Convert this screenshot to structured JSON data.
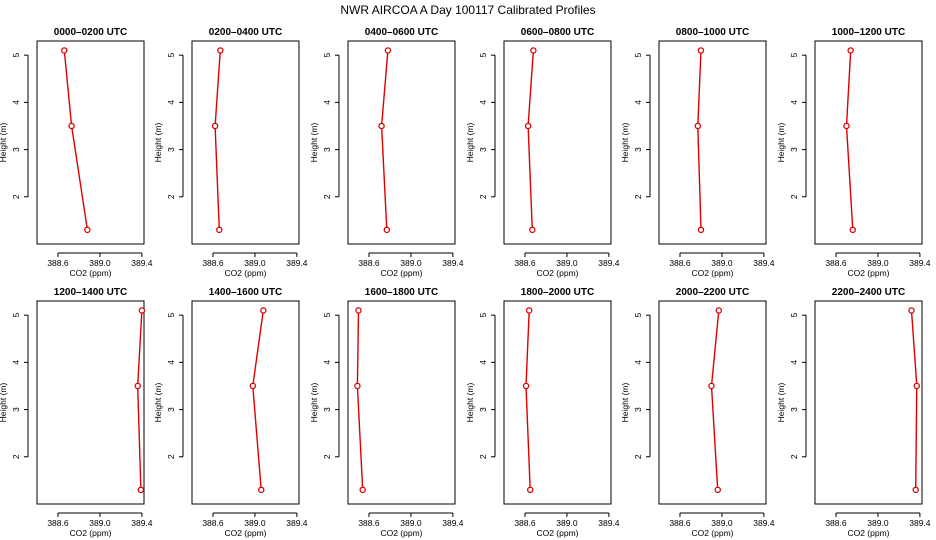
{
  "figure": {
    "title": "NWR AIRCOA A  Day 100117  Calibrated Profiles"
  },
  "chart_data": [
    {
      "type": "line",
      "title": "0000–0200 UTC",
      "xlabel": "CO2 (ppm)",
      "ylabel": "Height (m)",
      "xlim": [
        388.4,
        389.42
      ],
      "ylim": [
        1.0,
        5.3
      ],
      "x_ticks": [
        388.6,
        389.0,
        389.4
      ],
      "x_tick_labels": [
        "388.6",
        "389.0",
        "389.4"
      ],
      "y_ticks": [
        2,
        3,
        4,
        5
      ],
      "y_tick_labels": [
        "2",
        "3",
        "4",
        "5"
      ],
      "series": [
        {
          "name": "profile",
          "color": "#dd0000",
          "x": [
            388.66,
            388.73,
            388.88
          ],
          "y": [
            5.1,
            3.5,
            1.3
          ]
        }
      ]
    },
    {
      "type": "line",
      "title": "0200–0400 UTC",
      "xlabel": "CO2 (ppm)",
      "ylabel": "Height (m)",
      "xlim": [
        388.4,
        389.42
      ],
      "ylim": [
        1.0,
        5.3
      ],
      "x_ticks": [
        388.6,
        389.0,
        389.4
      ],
      "x_tick_labels": [
        "388.6",
        "389.0",
        "389.4"
      ],
      "y_ticks": [
        2,
        3,
        4,
        5
      ],
      "y_tick_labels": [
        "2",
        "3",
        "4",
        "5"
      ],
      "series": [
        {
          "name": "profile",
          "color": "#dd0000",
          "x": [
            388.67,
            388.62,
            388.66
          ],
          "y": [
            5.1,
            3.5,
            1.3
          ]
        }
      ]
    },
    {
      "type": "line",
      "title": "0400–0600 UTC",
      "xlabel": "CO2 (ppm)",
      "ylabel": "Height (m)",
      "xlim": [
        388.4,
        389.42
      ],
      "ylim": [
        1.0,
        5.3
      ],
      "x_ticks": [
        388.6,
        389.0,
        389.4
      ],
      "x_tick_labels": [
        "388.6",
        "389.0",
        "389.4"
      ],
      "y_ticks": [
        2,
        3,
        4,
        5
      ],
      "y_tick_labels": [
        "2",
        "3",
        "4",
        "5"
      ],
      "series": [
        {
          "name": "profile",
          "color": "#dd0000",
          "x": [
            388.78,
            388.72,
            388.77
          ],
          "y": [
            5.1,
            3.5,
            1.3
          ]
        }
      ]
    },
    {
      "type": "line",
      "title": "0600–0800 UTC",
      "xlabel": "CO2 (ppm)",
      "ylabel": "Height (m)",
      "xlim": [
        388.4,
        389.42
      ],
      "ylim": [
        1.0,
        5.3
      ],
      "x_ticks": [
        388.6,
        389.0,
        389.4
      ],
      "x_tick_labels": [
        "388.6",
        "389.0",
        "389.4"
      ],
      "y_ticks": [
        2,
        3,
        4,
        5
      ],
      "y_tick_labels": [
        "2",
        "3",
        "4",
        "5"
      ],
      "series": [
        {
          "name": "profile",
          "color": "#dd0000",
          "x": [
            388.68,
            388.63,
            388.67
          ],
          "y": [
            5.1,
            3.5,
            1.3
          ]
        }
      ]
    },
    {
      "type": "line",
      "title": "0800–1000 UTC",
      "xlabel": "CO2 (ppm)",
      "ylabel": "Height (m)",
      "xlim": [
        388.4,
        389.42
      ],
      "ylim": [
        1.0,
        5.3
      ],
      "x_ticks": [
        388.6,
        389.0,
        389.4
      ],
      "x_tick_labels": [
        "388.6",
        "389.0",
        "389.4"
      ],
      "y_ticks": [
        2,
        3,
        4,
        5
      ],
      "y_tick_labels": [
        "2",
        "3",
        "4",
        "5"
      ],
      "series": [
        {
          "name": "profile",
          "color": "#dd0000",
          "x": [
            388.8,
            388.77,
            388.8
          ],
          "y": [
            5.1,
            3.5,
            1.3
          ]
        }
      ]
    },
    {
      "type": "line",
      "title": "1000–1200 UTC",
      "xlabel": "CO2 (ppm)",
      "ylabel": "Height (m)",
      "xlim": [
        388.4,
        389.42
      ],
      "ylim": [
        1.0,
        5.3
      ],
      "x_ticks": [
        388.6,
        389.0,
        389.4
      ],
      "x_tick_labels": [
        "388.6",
        "389.0",
        "389.4"
      ],
      "y_ticks": [
        2,
        3,
        4,
        5
      ],
      "y_tick_labels": [
        "2",
        "3",
        "4",
        "5"
      ],
      "series": [
        {
          "name": "profile",
          "color": "#dd0000",
          "x": [
            388.74,
            388.7,
            388.76
          ],
          "y": [
            5.1,
            3.5,
            1.3
          ]
        }
      ]
    },
    {
      "type": "line",
      "title": "1200–1400 UTC",
      "xlabel": "CO2 (ppm)",
      "ylabel": "Height (m)",
      "xlim": [
        388.4,
        389.42
      ],
      "ylim": [
        1.0,
        5.3
      ],
      "x_ticks": [
        388.6,
        389.0,
        389.4
      ],
      "x_tick_labels": [
        "388.6",
        "389.0",
        "389.4"
      ],
      "y_ticks": [
        2,
        3,
        4,
        5
      ],
      "y_tick_labels": [
        "2",
        "3",
        "4",
        "5"
      ],
      "series": [
        {
          "name": "profile",
          "color": "#dd0000",
          "x": [
            389.4,
            389.36,
            389.39
          ],
          "y": [
            5.1,
            3.5,
            1.3
          ]
        }
      ]
    },
    {
      "type": "line",
      "title": "1400–1600 UTC",
      "xlabel": "CO2 (ppm)",
      "ylabel": "Height (m)",
      "xlim": [
        388.4,
        389.42
      ],
      "ylim": [
        1.0,
        5.3
      ],
      "x_ticks": [
        388.6,
        389.0,
        389.4
      ],
      "x_tick_labels": [
        "388.6",
        "389.0",
        "389.4"
      ],
      "y_ticks": [
        2,
        3,
        4,
        5
      ],
      "y_tick_labels": [
        "2",
        "3",
        "4",
        "5"
      ],
      "series": [
        {
          "name": "profile",
          "color": "#dd0000",
          "x": [
            389.08,
            388.98,
            389.06
          ],
          "y": [
            5.1,
            3.5,
            1.3
          ]
        }
      ]
    },
    {
      "type": "line",
      "title": "1600–1800 UTC",
      "xlabel": "CO2 (ppm)",
      "ylabel": "Height (m)",
      "xlim": [
        388.4,
        389.42
      ],
      "ylim": [
        1.0,
        5.3
      ],
      "x_ticks": [
        388.6,
        389.0,
        389.4
      ],
      "x_tick_labels": [
        "388.6",
        "389.0",
        "389.4"
      ],
      "y_ticks": [
        2,
        3,
        4,
        5
      ],
      "y_tick_labels": [
        "2",
        "3",
        "4",
        "5"
      ],
      "series": [
        {
          "name": "profile",
          "color": "#dd0000",
          "x": [
            388.5,
            388.49,
            388.54
          ],
          "y": [
            5.1,
            3.5,
            1.3
          ]
        }
      ]
    },
    {
      "type": "line",
      "title": "1800–2000 UTC",
      "xlabel": "CO2 (ppm)",
      "ylabel": "Height (m)",
      "xlim": [
        388.4,
        389.42
      ],
      "ylim": [
        1.0,
        5.3
      ],
      "x_ticks": [
        388.6,
        389.0,
        389.4
      ],
      "x_tick_labels": [
        "388.6",
        "389.0",
        "389.4"
      ],
      "y_ticks": [
        2,
        3,
        4,
        5
      ],
      "y_tick_labels": [
        "2",
        "3",
        "4",
        "5"
      ],
      "series": [
        {
          "name": "profile",
          "color": "#dd0000",
          "x": [
            388.64,
            388.61,
            388.65
          ],
          "y": [
            5.1,
            3.5,
            1.3
          ]
        }
      ]
    },
    {
      "type": "line",
      "title": "2000–2200 UTC",
      "xlabel": "CO2 (ppm)",
      "ylabel": "Height (m)",
      "xlim": [
        388.4,
        389.42
      ],
      "ylim": [
        1.0,
        5.3
      ],
      "x_ticks": [
        388.6,
        389.0,
        389.4
      ],
      "x_tick_labels": [
        "388.6",
        "389.0",
        "389.4"
      ],
      "y_ticks": [
        2,
        3,
        4,
        5
      ],
      "y_tick_labels": [
        "2",
        "3",
        "4",
        "5"
      ],
      "series": [
        {
          "name": "profile",
          "color": "#dd0000",
          "x": [
            388.97,
            388.9,
            388.96
          ],
          "y": [
            5.1,
            3.5,
            1.3
          ]
        }
      ]
    },
    {
      "type": "line",
      "title": "2200–2400 UTC",
      "xlabel": "CO2 (ppm)",
      "ylabel": "Height (m)",
      "xlim": [
        388.4,
        389.42
      ],
      "ylim": [
        1.0,
        5.3
      ],
      "x_ticks": [
        388.6,
        389.0,
        389.4
      ],
      "x_tick_labels": [
        "388.6",
        "389.0",
        "389.4"
      ],
      "y_ticks": [
        2,
        3,
        4,
        5
      ],
      "y_tick_labels": [
        "2",
        "3",
        "4",
        "5"
      ],
      "series": [
        {
          "name": "profile",
          "color": "#dd0000",
          "x": [
            389.32,
            389.37,
            389.36
          ],
          "y": [
            5.1,
            3.5,
            1.3
          ]
        }
      ]
    }
  ]
}
